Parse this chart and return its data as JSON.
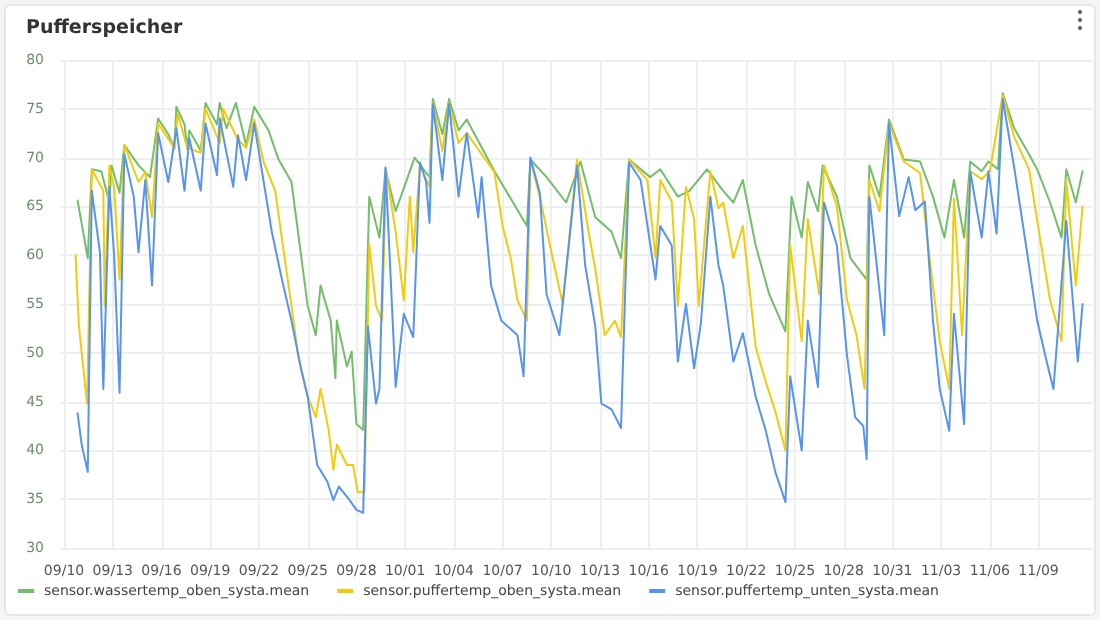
{
  "chart_data": {
    "type": "line",
    "title": "Pufferspeicher",
    "xlim": [
      "--09-09T18:00",
      "--11-12T07:00"
    ],
    "xticks": [
      {
        "value": "--09-10",
        "label": "09/10"
      },
      {
        "value": "--09-13",
        "label": "09/13"
      },
      {
        "value": "--09-16",
        "label": "09/16"
      },
      {
        "value": "--09-19",
        "label": "09/19"
      },
      {
        "value": "--09-22",
        "label": "09/22"
      },
      {
        "value": "--09-25",
        "label": "09/25"
      },
      {
        "value": "--09-28",
        "label": "09/28"
      },
      {
        "value": "--10-01",
        "label": "10/01"
      },
      {
        "value": "--10-04",
        "label": "10/04"
      },
      {
        "value": "--10-07",
        "label": "10/07"
      },
      {
        "value": "--10-10",
        "label": "10/10"
      },
      {
        "value": "--10-13",
        "label": "10/13"
      },
      {
        "value": "--10-16",
        "label": "10/16"
      },
      {
        "value": "--10-19",
        "label": "10/19"
      },
      {
        "value": "--10-22",
        "label": "10/22"
      },
      {
        "value": "--10-25",
        "label": "10/25"
      },
      {
        "value": "--10-28",
        "label": "10/28"
      },
      {
        "value": "--10-31",
        "label": "10/31"
      },
      {
        "value": "--11-03",
        "label": "11/03"
      },
      {
        "value": "--11-06",
        "label": "11/06"
      },
      {
        "value": "--11-09",
        "label": "11/09"
      }
    ],
    "ylim": [
      30,
      80
    ],
    "yticks": [
      30,
      35,
      40,
      45,
      50,
      55,
      60,
      65,
      70,
      75,
      80
    ],
    "grid": true,
    "legend": "bottom",
    "marker": "none",
    "line_style": "solid",
    "series": [
      {
        "name": "sensor.wassertemp_oben_systa.mean",
        "color": "#73bf69",
        "x": [
          "--09-10T20:00",
          "--09-11T11:00",
          "--09-11T17:00",
          "--09-12T07:00",
          "--09-12T19:00",
          "--09-12T22:00",
          "--09-13T10:00",
          "--09-13T17:00",
          "--09-14T14:00",
          "--09-15T07:00",
          "--09-15T19:00",
          "--09-16T10:00",
          "--09-16T19:00",
          "--09-16T22:00",
          "--09-17T10:00",
          "--09-17T14:00",
          "--09-17T17:00",
          "--09-18T10:00",
          "--09-18T17:00",
          "--09-19T10:00",
          "--09-19T14:00",
          "--09-20T00:00",
          "--09-20T14:00",
          "--09-21T05:00",
          "--09-21T17:00",
          "--09-22T14:00",
          "--09-23T05:00",
          "--09-24T00:00",
          "--09-24T10:00",
          "--09-25T00:00",
          "--09-25T12:00",
          "--09-25T19:00",
          "--09-26T10:00",
          "--09-26T17:00",
          "--09-26T19:00",
          "--09-27T10:00",
          "--09-27T17:00",
          "--09-28T00:00",
          "--09-28T10:00",
          "--09-28T19:00",
          "--09-29T10:00",
          "--09-29T19:00",
          "--09-30T10:00",
          "--10-01T14:00",
          "--10-02T12:00",
          "--10-02T17:00",
          "--10-03T07:00",
          "--10-03T17:00",
          "--10-04T07:00",
          "--10-04T19:00",
          "--10-06T12:00",
          "--10-08T12:00",
          "--10-08T17:00",
          "--10-09T17:00",
          "--10-10T22:00",
          "--10-11T19:00",
          "--10-12T17:00",
          "--10-13T17:00",
          "--10-14T07:00",
          "--10-14T19:00",
          "--10-16T02:00",
          "--10-16T17:00",
          "--10-17T19:00",
          "--10-18T12:00",
          "--10-19T14:00",
          "--10-20T14:00",
          "--10-21T05:00",
          "--10-21T19:00",
          "--10-22T14:00",
          "--10-23T10:00",
          "--10-24T10:00",
          "--10-24T19:00",
          "--10-25T10:00",
          "--10-25T19:00",
          "--10-26T10:00",
          "--10-26T17:00",
          "--10-27T14:00",
          "--10-28T10:00",
          "--10-29T10:00",
          "--10-29T14:00",
          "--10-30T05:00",
          "--10-30T19:00",
          "--10-31T17:00",
          "--11-01T17:00",
          "--11-02T12:00",
          "--11-03T05:00",
          "--11-03T19:00",
          "--11-04T10:00",
          "--11-04T19:00",
          "--11-05T12:00",
          "--11-05T22:00",
          "--11-06T12:00",
          "--11-06T19:00",
          "--11-07T12:00",
          "--11-08T07:00",
          "--11-08T22:00",
          "--11-09T17:00",
          "--11-10T10:00",
          "--11-10T17:00",
          "--11-11T07:00",
          "--11-11T17:00"
        ],
        "values": [
          65.6,
          59.7,
          68.8,
          68.6,
          65.4,
          69.2,
          66.4,
          71.3,
          69.2,
          68.0,
          74.0,
          72.4,
          70.9,
          75.2,
          73.4,
          70.9,
          72.8,
          70.7,
          75.6,
          73.4,
          75.6,
          73.0,
          75.6,
          71.3,
          75.2,
          72.8,
          69.8,
          67.5,
          62.2,
          54.8,
          51.8,
          56.9,
          53.3,
          47.4,
          53.3,
          48.6,
          50.1,
          42.7,
          42.1,
          66.0,
          61.8,
          68.8,
          64.5,
          70.0,
          68.0,
          76.0,
          72.4,
          76.0,
          72.8,
          73.9,
          68.6,
          63.0,
          69.8,
          68.0,
          65.4,
          69.6,
          63.9,
          62.4,
          59.7,
          69.8,
          68.0,
          68.8,
          66.0,
          66.6,
          68.8,
          66.6,
          65.4,
          67.7,
          61.0,
          56.0,
          52.2,
          66.0,
          61.8,
          67.5,
          64.5,
          69.2,
          66.0,
          59.7,
          57.5,
          69.2,
          66.0,
          73.9,
          69.8,
          69.6,
          66.0,
          61.8,
          67.7,
          61.8,
          69.6,
          68.6,
          69.6,
          68.8,
          76.6,
          73.0,
          70.7,
          68.8,
          65.4,
          61.8,
          68.8,
          65.4,
          68.6
        ]
      },
      {
        "name": "sensor.puffertemp_oben_systa.mean",
        "color": "#f2cc0c",
        "x": [
          "--09-10T17:00",
          "--09-10T22:00",
          "--09-11T10:00",
          "--09-11T17:00",
          "--09-12T10:00",
          "--09-12T12:00",
          "--09-12T19:00",
          "--09-13T02:00",
          "--09-13T10:00",
          "--09-13T17:00",
          "--09-14T14:00",
          "--09-15T00:00",
          "--09-15T10:00",
          "--09-15T19:00",
          "--09-16T19:00",
          "--09-17T00:00",
          "--09-17T14:00",
          "--09-18T10:00",
          "--09-18T17:00",
          "--09-19T14:00",
          "--09-19T19:00",
          "--09-20T17:00",
          "--09-21T05:00",
          "--09-21T17:00",
          "--09-22T07:00",
          "--09-23T00:00",
          "--09-23T14:00",
          "--09-24T00:00",
          "--09-24T10:00",
          "--09-25T00:00",
          "--09-25T12:00",
          "--09-25T19:00",
          "--09-26T07:00",
          "--09-26T14:00",
          "--09-26T19:00",
          "--09-27T10:00",
          "--09-27T19:00",
          "--09-28T02:00",
          "--09-28T12:00",
          "--09-28T19:00",
          "--09-29T05:00",
          "--09-29T14:00",
          "--09-29T20:00",
          "--09-30T10:00",
          "--09-30T22:00",
          "--10-01T07:00",
          "--10-01T12:00",
          "--10-01T22:00",
          "--10-02T12:00",
          "--10-02T17:00",
          "--10-03T07:00",
          "--10-03T17:00",
          "--10-04T07:00",
          "--10-04T19:00",
          "--10-06T12:00",
          "--10-07T00:00",
          "--10-07T12:00",
          "--10-07T22:00",
          "--10-08T12:00",
          "--10-08T17:00",
          "--10-09T07:00",
          "--10-10T02:00",
          "--10-10T17:00",
          "--10-11T14:00",
          "--10-12T07:00",
          "--10-12T17:00",
          "--10-13T07:00",
          "--10-13T22:00",
          "--10-14T07:00",
          "--10-14T19:00",
          "--10-15T22:00",
          "--10-16T10:00",
          "--10-16T17:00",
          "--10-17T10:00",
          "--10-17T19:00",
          "--10-18T07:00",
          "--10-18T19:00",
          "--10-19T02:00",
          "--10-19T19:00",
          "--10-20T07:00",
          "--10-20T14:00",
          "--10-21T05:00",
          "--10-21T19:00",
          "--10-22T14:00",
          "--10-23T05:00",
          "--10-23T19:00",
          "--10-24T10:00",
          "--10-24T17:00",
          "--10-25T10:00",
          "--10-25T19:00",
          "--10-26T12:00",
          "--10-26T19:00",
          "--10-27T14:00",
          "--10-28T05:00",
          "--10-28T19:00",
          "--10-29T07:00",
          "--10-29T14:00",
          "--10-30T05:00",
          "--10-30T19:00",
          "--10-31T17:00",
          "--11-01T17:00",
          "--11-02T07:00",
          "--11-02T22:00",
          "--11-03T12:00",
          "--11-03T19:00",
          "--11-04T07:00",
          "--11-04T19:00",
          "--11-05T12:00",
          "--11-06T00:00",
          "--11-06T19:00",
          "--11-07T12:00",
          "--11-08T10:00",
          "--11-09T02:00",
          "--11-09T17:00",
          "--11-10T10:00",
          "--11-10T17:00",
          "--11-11T07:00",
          "--11-11T17:00"
        ],
        "values": [
          60.0,
          52.7,
          44.8,
          68.8,
          66.6,
          54.8,
          69.2,
          67.0,
          57.5,
          71.3,
          67.5,
          68.5,
          63.9,
          73.5,
          71.0,
          74.5,
          71.0,
          70.5,
          75.0,
          71.5,
          75.0,
          71.8,
          71.0,
          73.9,
          69.5,
          66.6,
          59.7,
          54.8,
          49.7,
          45.5,
          43.4,
          46.3,
          42.1,
          38.0,
          40.6,
          38.5,
          38.5,
          35.7,
          35.7,
          61.1,
          54.8,
          53.3,
          68.6,
          62.4,
          55.4,
          66.0,
          60.3,
          69.2,
          67.0,
          75.6,
          70.7,
          75.6,
          71.5,
          72.5,
          68.5,
          63.0,
          59.7,
          55.4,
          53.3,
          69.8,
          66.0,
          59.7,
          55.0,
          69.8,
          62.4,
          58.6,
          51.8,
          53.3,
          51.6,
          69.8,
          67.7,
          59.7,
          67.7,
          65.5,
          54.8,
          67.0,
          63.7,
          54.8,
          68.6,
          64.8,
          65.4,
          59.7,
          63.0,
          50.6,
          47.0,
          44.0,
          40.0,
          61.0,
          51.2,
          63.7,
          56.0,
          69.2,
          65.0,
          55.4,
          51.8,
          46.3,
          67.7,
          64.5,
          73.5,
          69.6,
          68.4,
          59.7,
          51.2,
          46.3,
          65.8,
          51.8,
          68.6,
          67.8,
          68.6,
          76.4,
          72.1,
          68.8,
          61.8,
          55.4,
          51.2,
          67.7,
          56.9,
          65.0
        ]
      },
      {
        "name": "sensor.puffertemp_unten_systa.mean",
        "color": "#5794f2",
        "x": [
          "--09-10T20:00",
          "--09-11T02:00",
          "--09-11T11:00",
          "--09-11T17:00",
          "--09-12T05:00",
          "--09-12T10:00",
          "--09-12T19:00",
          "--09-13T02:00",
          "--09-13T10:00",
          "--09-13T17:00",
          "--09-14T07:00",
          "--09-14T14:00",
          "--09-15T00:00",
          "--09-15T10:00",
          "--09-15T19:00",
          "--09-16T10:00",
          "--09-16T22:00",
          "--09-17T10:00",
          "--09-17T17:00",
          "--09-18T10:00",
          "--09-18T17:00",
          "--09-19T10:00",
          "--09-19T14:00",
          "--09-20T10:00",
          "--09-20T17:00",
          "--09-21T05:00",
          "--09-21T17:00",
          "--09-22T07:00",
          "--09-22T19:00",
          "--09-23T10:00",
          "--09-24T00:00",
          "--09-24T14:00",
          "--09-25T00:00",
          "--09-25T14:00",
          "--09-26T05:00",
          "--09-26T14:00",
          "--09-26T22:00",
          "--09-27T14:00",
          "--09-28T00:00",
          "--09-28T10:00",
          "--09-28T17:00",
          "--09-29T05:00",
          "--09-29T10:00",
          "--09-29T19:00",
          "--09-30T07:00",
          "--09-30T10:00",
          "--09-30T22:00",
          "--10-01T12:00",
          "--10-01T22:00",
          "--10-02T07:00",
          "--10-02T12:00",
          "--10-02T17:00",
          "--10-03T07:00",
          "--10-03T17:00",
          "--10-04T07:00",
          "--10-04T19:00",
          "--10-05T12:00",
          "--10-05T17:00",
          "--10-06T07:00",
          "--10-06T22:00",
          "--10-07T22:00",
          "--10-08T07:00",
          "--10-08T17:00",
          "--10-09T07:00",
          "--10-09T17:00",
          "--10-10T12:00",
          "--10-11T14:00",
          "--10-12T02:00",
          "--10-12T17:00",
          "--10-13T02:00",
          "--10-13T17:00",
          "--10-14T07:00",
          "--10-14T19:00",
          "--10-15T12:00",
          "--10-16T10:00",
          "--10-16T17:00",
          "--10-17T10:00",
          "--10-17T19:00",
          "--10-18T07:00",
          "--10-18T19:00",
          "--10-19T05:00",
          "--10-19T19:00",
          "--10-20T07:00",
          "--10-20T14:00",
          "--10-21T05:00",
          "--10-21T19:00",
          "--10-22T14:00",
          "--10-23T05:00",
          "--10-23T19:00",
          "--10-24T10:00",
          "--10-24T17:00",
          "--10-25T10:00",
          "--10-25T19:00",
          "--10-26T10:00",
          "--10-26T19:00",
          "--10-27T14:00",
          "--10-28T05:00",
          "--10-28T17:00",
          "--10-29T05:00",
          "--10-29T10:00",
          "--10-29T14:00",
          "--10-30T12:00",
          "--10-30T19:00",
          "--10-31T10:00",
          "--11-01T00:00",
          "--11-01T10:00",
          "--11-02T00:00",
          "--11-02T12:00",
          "--11-02T22:00",
          "--11-03T12:00",
          "--11-03T19:00",
          "--11-04T10:00",
          "--11-04T19:00",
          "--11-05T12:00",
          "--11-05T22:00",
          "--11-06T10:00",
          "--11-06T19:00",
          "--11-07T12:00",
          "--11-08T07:00",
          "--11-08T22:00",
          "--11-09T12:00",
          "--11-09T22:00",
          "--11-10T17:00",
          "--11-11T10:00",
          "--11-11T17:00"
        ],
        "values": [
          43.8,
          40.6,
          37.8,
          66.6,
          60.3,
          46.3,
          67.0,
          60.0,
          45.9,
          70.4,
          66.0,
          60.3,
          67.7,
          56.9,
          72.5,
          67.5,
          73.0,
          66.6,
          72.0,
          66.6,
          73.5,
          68.2,
          74.0,
          67.0,
          72.3,
          67.7,
          73.5,
          67.5,
          62.4,
          57.5,
          53.3,
          48.4,
          45.5,
          38.5,
          36.8,
          34.9,
          36.3,
          34.9,
          33.9,
          33.6,
          52.7,
          44.8,
          46.3,
          69.0,
          51.2,
          46.5,
          54.0,
          51.6,
          69.5,
          67.5,
          63.3,
          75.5,
          67.7,
          75.5,
          66.0,
          72.5,
          63.9,
          68.0,
          56.9,
          53.3,
          51.8,
          47.6,
          70.0,
          66.4,
          56.0,
          51.8,
          69.2,
          59.0,
          52.7,
          44.8,
          44.2,
          42.3,
          69.5,
          67.7,
          57.5,
          63.0,
          61.0,
          49.1,
          55.0,
          48.4,
          53.0,
          66.0,
          59.0,
          56.9,
          49.1,
          52.0,
          45.5,
          42.0,
          37.8,
          34.7,
          47.6,
          40.0,
          53.3,
          46.5,
          65.4,
          61.0,
          49.7,
          43.4,
          42.5,
          39.1,
          66.0,
          51.8,
          73.5,
          64.0,
          68.0,
          64.6,
          65.5,
          53.3,
          46.3,
          42.0,
          54.0,
          42.7,
          68.6,
          61.8,
          68.6,
          62.2,
          76.0,
          69.0,
          60.3,
          53.3,
          49.1,
          46.3,
          63.5,
          49.1,
          55.0
        ]
      }
    ]
  }
}
